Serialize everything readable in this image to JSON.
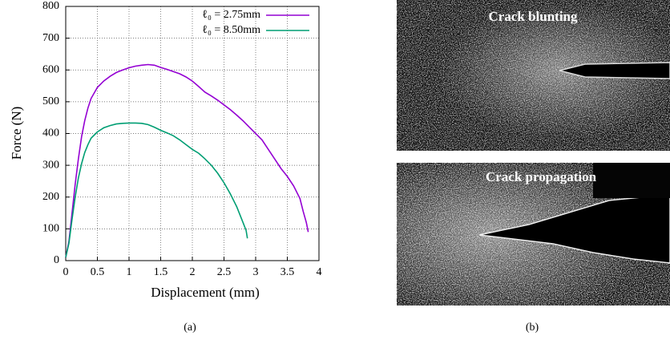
{
  "chart_data": {
    "type": "line",
    "xlabel": "Displacement (mm)",
    "ylabel": "Force (N)",
    "xlim": [
      0,
      4
    ],
    "ylim": [
      0,
      800
    ],
    "xticks": [
      0,
      0.5,
      1,
      1.5,
      2,
      2.5,
      3,
      3.5,
      4
    ],
    "yticks": [
      0,
      100,
      200,
      300,
      400,
      500,
      600,
      700,
      800
    ],
    "grid": true,
    "legend": "top-right",
    "series": [
      {
        "name": "ℓ₀ = 2.75mm",
        "color": "#9400d3",
        "x": [
          0,
          0.05,
          0.1,
          0.15,
          0.2,
          0.25,
          0.3,
          0.35,
          0.4,
          0.5,
          0.6,
          0.7,
          0.8,
          0.9,
          1.0,
          1.1,
          1.2,
          1.3,
          1.4,
          1.5,
          1.6,
          1.7,
          1.8,
          1.9,
          2.0,
          2.1,
          2.2,
          2.3,
          2.4,
          2.5,
          2.6,
          2.7,
          2.8,
          2.9,
          3.0,
          3.1,
          3.2,
          3.3,
          3.4,
          3.5,
          3.6,
          3.7,
          3.75,
          3.8,
          3.83
        ],
        "values": [
          10,
          60,
          150,
          240,
          320,
          390,
          440,
          480,
          510,
          545,
          565,
          580,
          592,
          600,
          607,
          612,
          615,
          617,
          615,
          608,
          602,
          595,
          588,
          578,
          565,
          548,
          530,
          518,
          505,
          490,
          475,
          458,
          440,
          420,
          400,
          380,
          350,
          320,
          290,
          265,
          235,
          195,
          155,
          120,
          90
        ]
      },
      {
        "name": "ℓ₀ = 8.50mm",
        "color": "#009e73",
        "x": [
          0,
          0.05,
          0.1,
          0.15,
          0.2,
          0.25,
          0.3,
          0.35,
          0.4,
          0.5,
          0.6,
          0.7,
          0.8,
          0.9,
          1.0,
          1.1,
          1.2,
          1.3,
          1.4,
          1.5,
          1.6,
          1.7,
          1.8,
          1.9,
          2.0,
          2.1,
          2.2,
          2.3,
          2.4,
          2.5,
          2.6,
          2.7,
          2.8,
          2.85,
          2.87
        ],
        "values": [
          10,
          55,
          130,
          200,
          260,
          305,
          340,
          365,
          385,
          405,
          418,
          425,
          430,
          432,
          433,
          433,
          432,
          428,
          420,
          410,
          402,
          393,
          380,
          365,
          350,
          338,
          320,
          300,
          275,
          245,
          210,
          170,
          120,
          95,
          70
        ]
      }
    ],
    "caption_a": "(a)",
    "caption_b": "(b)",
    "image_top_label": "Crack blunting",
    "image_bottom_label": "Crack propagation"
  }
}
